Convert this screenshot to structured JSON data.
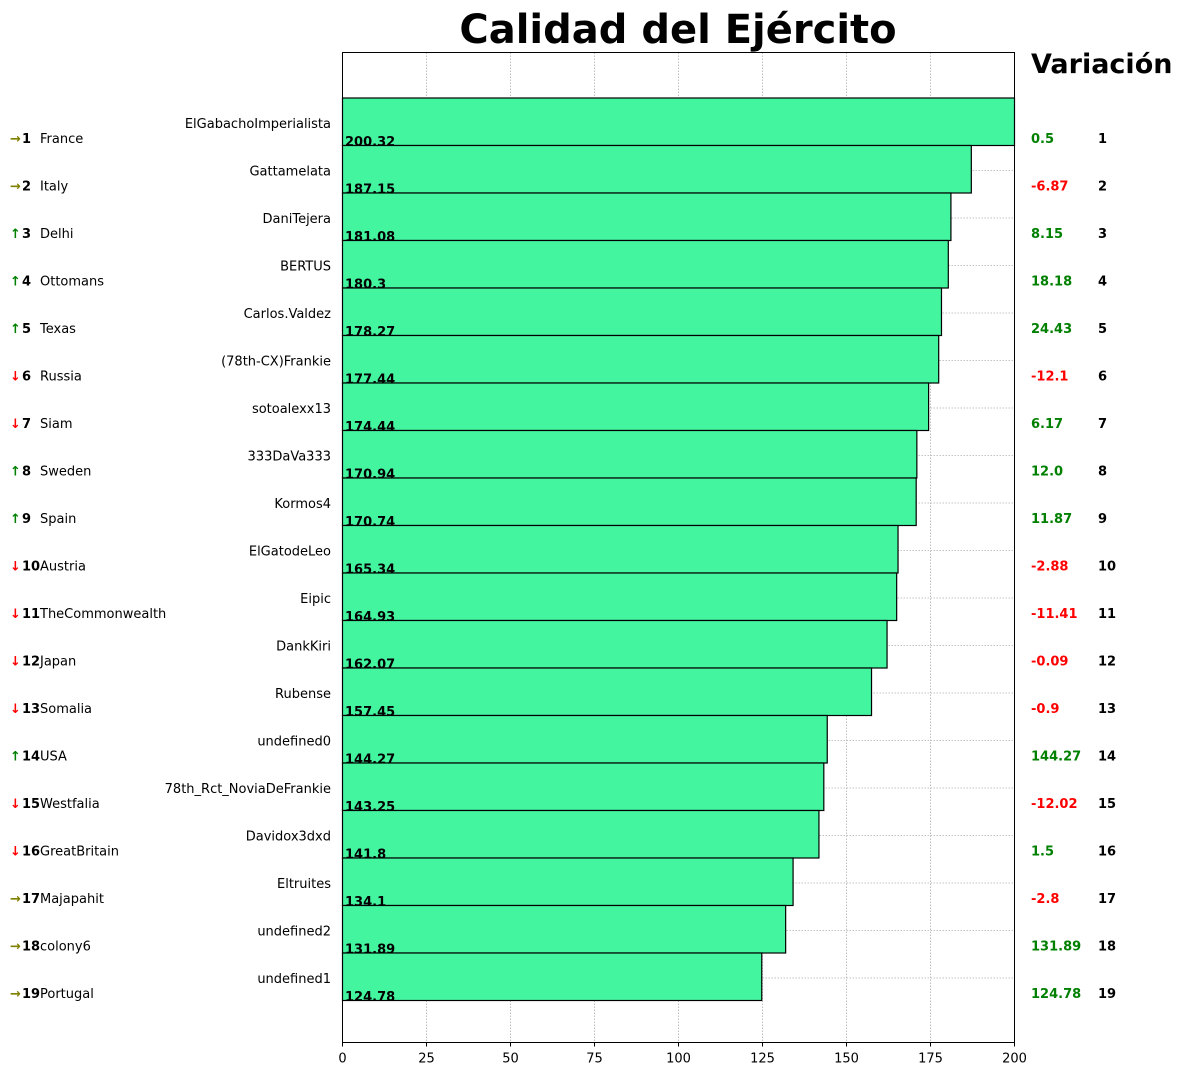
{
  "chart_data": {
    "type": "bar",
    "orientation": "horizontal",
    "title": "Calidad del Ejército",
    "variation_header": "Variación",
    "xlim": [
      0,
      200
    ],
    "x_ticks": [
      0,
      25,
      50,
      75,
      100,
      125,
      150,
      175,
      200
    ],
    "grid": true,
    "bar_color": "#44f5a0",
    "up_color": "#008000",
    "down_color": "#ff0000",
    "same_color": "#808000",
    "rows": [
      {
        "rank": 1,
        "trend": "→",
        "country": "France",
        "player": "ElGabachoImperialista",
        "value": 200.32,
        "value_label": "200.32",
        "variation": 0.5,
        "variation_label": "0.5"
      },
      {
        "rank": 2,
        "trend": "→",
        "country": "Italy",
        "player": "Gattamelata",
        "value": 187.15,
        "value_label": "187.15",
        "variation": -6.87,
        "variation_label": "-6.87"
      },
      {
        "rank": 3,
        "trend": "↑",
        "country": "Delhi",
        "player": "DaniTejera",
        "value": 181.08,
        "value_label": "181.08",
        "variation": 8.15,
        "variation_label": "8.15"
      },
      {
        "rank": 4,
        "trend": "↑",
        "country": "Ottomans",
        "player": "BERTUS",
        "value": 180.3,
        "value_label": "180.3",
        "variation": 18.18,
        "variation_label": "18.18"
      },
      {
        "rank": 5,
        "trend": "↑",
        "country": "Texas",
        "player": "Carlos.Valdez",
        "value": 178.27,
        "value_label": "178.27",
        "variation": 24.43,
        "variation_label": "24.43"
      },
      {
        "rank": 6,
        "trend": "↓",
        "country": "Russia",
        "player": "(78th-CX)Frankie",
        "value": 177.44,
        "value_label": "177.44",
        "variation": -12.1,
        "variation_label": "-12.1"
      },
      {
        "rank": 7,
        "trend": "↓",
        "country": "Siam",
        "player": "sotoalexx13",
        "value": 174.44,
        "value_label": "174.44",
        "variation": 6.17,
        "variation_label": "6.17"
      },
      {
        "rank": 8,
        "trend": "↑",
        "country": "Sweden",
        "player": "333DaVa333",
        "value": 170.94,
        "value_label": "170.94",
        "variation": 12.0,
        "variation_label": "12.0"
      },
      {
        "rank": 9,
        "trend": "↑",
        "country": "Spain",
        "player": "Kormos4",
        "value": 170.74,
        "value_label": "170.74",
        "variation": 11.87,
        "variation_label": "11.87"
      },
      {
        "rank": 10,
        "trend": "↓",
        "country": "Austria",
        "player": "ElGatodeLeo",
        "value": 165.34,
        "value_label": "165.34",
        "variation": -2.88,
        "variation_label": "-2.88"
      },
      {
        "rank": 11,
        "trend": "↓",
        "country": "TheCommonwealth",
        "player": "Eipic",
        "value": 164.93,
        "value_label": "164.93",
        "variation": -11.41,
        "variation_label": "-11.41"
      },
      {
        "rank": 12,
        "trend": "↓",
        "country": "Japan",
        "player": "DankKiri",
        "value": 162.07,
        "value_label": "162.07",
        "variation": -0.09,
        "variation_label": "-0.09"
      },
      {
        "rank": 13,
        "trend": "↓",
        "country": "Somalia",
        "player": "Rubense",
        "value": 157.45,
        "value_label": "157.45",
        "variation": -0.9,
        "variation_label": "-0.9"
      },
      {
        "rank": 14,
        "trend": "↑",
        "country": "USA",
        "player": "undefined0",
        "value": 144.27,
        "value_label": "144.27",
        "variation": 144.27,
        "variation_label": "144.27"
      },
      {
        "rank": 15,
        "trend": "↓",
        "country": "Westfalia",
        "player": "78th_Rct_NoviaDeFrankie",
        "value": 143.25,
        "value_label": "143.25",
        "variation": -12.02,
        "variation_label": "-12.02"
      },
      {
        "rank": 16,
        "trend": "↓",
        "country": "GreatBritain",
        "player": "Davidox3dxd",
        "value": 141.8,
        "value_label": "141.8",
        "variation": 1.5,
        "variation_label": "1.5"
      },
      {
        "rank": 17,
        "trend": "→",
        "country": "Majapahit",
        "player": "Eltruites",
        "value": 134.1,
        "value_label": "134.1",
        "variation": -2.8,
        "variation_label": "-2.8"
      },
      {
        "rank": 18,
        "trend": "→",
        "country": "colony6",
        "player": "undefined2",
        "value": 131.89,
        "value_label": "131.89",
        "variation": 131.89,
        "variation_label": "131.89"
      },
      {
        "rank": 19,
        "trend": "→",
        "country": "Portugal",
        "player": "undefined1",
        "value": 124.78,
        "value_label": "124.78",
        "variation": 124.78,
        "variation_label": "124.78"
      }
    ]
  }
}
